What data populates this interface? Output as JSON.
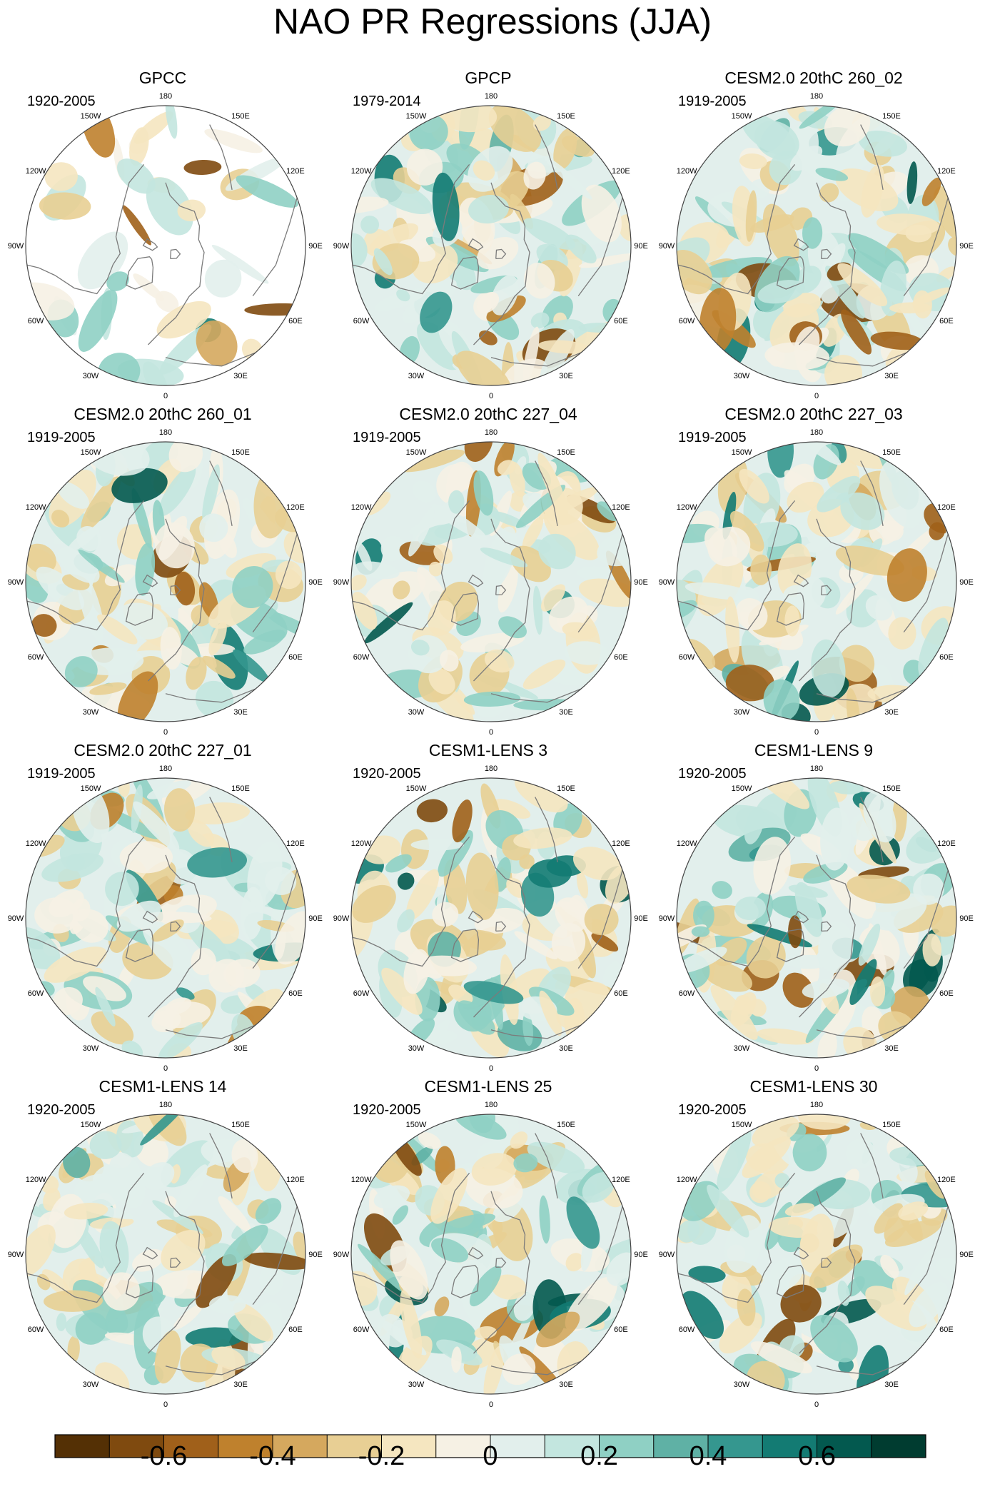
{
  "figure": {
    "title": "NAO PR Regressions (JJA)"
  },
  "chart_data": {
    "type": "heatmap",
    "projection": "north-polar-stereographic",
    "variable": "PR regression on NAO",
    "panels": [
      {
        "title": "GPCC",
        "period": "1920-2005",
        "data_coverage": "land-only"
      },
      {
        "title": "GPCP",
        "period": "1979-2014",
        "data_coverage": "global"
      },
      {
        "title": "CESM2.0 20thC 260_02",
        "period": "1919-2005",
        "data_coverage": "global"
      },
      {
        "title": "CESM2.0 20thC 260_01",
        "period": "1919-2005",
        "data_coverage": "global"
      },
      {
        "title": "CESM2.0 20thC 227_04",
        "period": "1919-2005",
        "data_coverage": "global"
      },
      {
        "title": "CESM2.0 20thC 227_03",
        "period": "1919-2005",
        "data_coverage": "global"
      },
      {
        "title": "CESM2.0 20thC 227_01",
        "period": "1919-2005",
        "data_coverage": "global"
      },
      {
        "title": "CESM1-LENS 3",
        "period": "1920-2005",
        "data_coverage": "global"
      },
      {
        "title": "CESM1-LENS 9",
        "period": "1920-2005",
        "data_coverage": "global"
      },
      {
        "title": "CESM1-LENS 14",
        "period": "1920-2005",
        "data_coverage": "global"
      },
      {
        "title": "CESM1-LENS 25",
        "period": "1920-2005",
        "data_coverage": "global"
      },
      {
        "title": "CESM1-LENS 30",
        "period": "1920-2005",
        "data_coverage": "global"
      }
    ],
    "longitude_labels": [
      {
        "label": "180",
        "lon": 180
      },
      {
        "label": "150E",
        "lon": 150
      },
      {
        "label": "120E",
        "lon": 120
      },
      {
        "label": "90E",
        "lon": 90
      },
      {
        "label": "60E",
        "lon": 60
      },
      {
        "label": "30E",
        "lon": 30
      },
      {
        "label": "0",
        "lon": 0
      },
      {
        "label": "30W",
        "lon": -30
      },
      {
        "label": "60W",
        "lon": -60
      },
      {
        "label": "90W",
        "lon": -90
      },
      {
        "label": "120W",
        "lon": -120
      },
      {
        "label": "150W",
        "lon": -150
      }
    ],
    "colorbar": {
      "levels": [
        -0.7,
        -0.6,
        -0.5,
        -0.4,
        -0.3,
        -0.2,
        -0.1,
        0,
        0.1,
        0.2,
        0.3,
        0.4,
        0.5,
        0.6,
        0.7
      ],
      "colors": [
        "#543005",
        "#7f4a0f",
        "#a0601a",
        "#bf812d",
        "#d5a85e",
        "#e8cf94",
        "#f5e6c0",
        "#f6f1e4",
        "#e2efec",
        "#c3e6df",
        "#8fd0c4",
        "#5fb1a5",
        "#35978f",
        "#137b73",
        "#03594f",
        "#003c30"
      ],
      "tick_labels": [
        "-0.6",
        "-0.4",
        "-0.2",
        "0",
        "0.2",
        "0.4",
        "0.6"
      ],
      "tick_values": [
        -0.6,
        -0.4,
        -0.2,
        0,
        0.2,
        0.4,
        0.6
      ]
    }
  }
}
